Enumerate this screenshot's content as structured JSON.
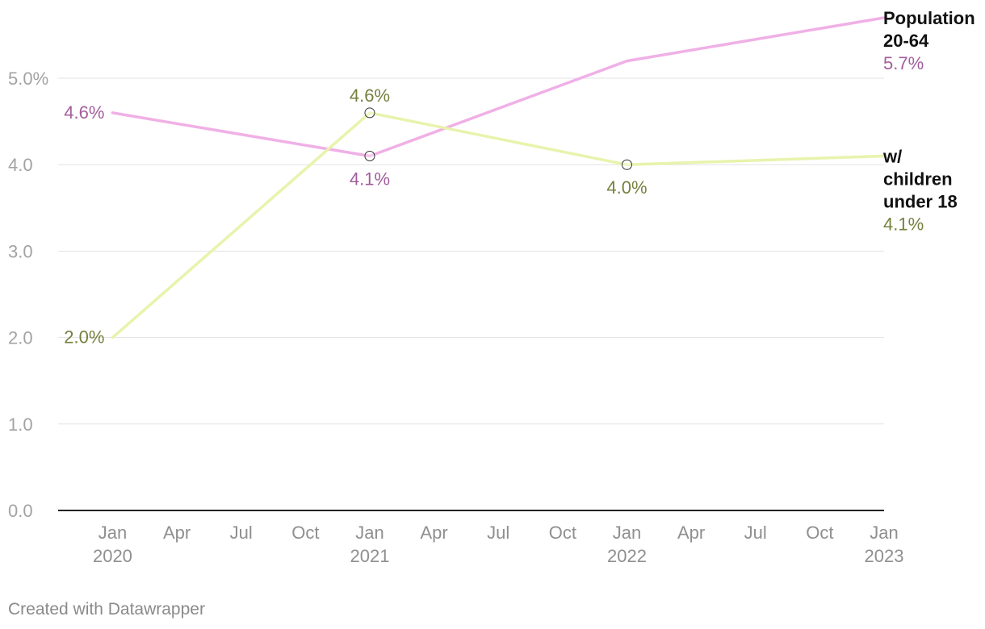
{
  "chart_data": {
    "type": "line",
    "x": [
      "2020-01",
      "2021-01",
      "2022-01",
      "2023-01"
    ],
    "xlim": [
      "2019-10-15",
      "2023-01"
    ],
    "ylim": [
      0,
      5.7
    ],
    "y_ticks": [
      {
        "value": 0,
        "label": "0.0"
      },
      {
        "value": 1,
        "label": "1.0"
      },
      {
        "value": 2,
        "label": "2.0"
      },
      {
        "value": 3,
        "label": "3.0"
      },
      {
        "value": 4,
        "label": "4.0"
      },
      {
        "value": 5,
        "label": "5.0%"
      }
    ],
    "x_ticks": [
      {
        "date": "2020-01",
        "label": "Jan",
        "year": "2020"
      },
      {
        "date": "2020-04",
        "label": "Apr",
        "year": ""
      },
      {
        "date": "2020-07",
        "label": "Jul",
        "year": ""
      },
      {
        "date": "2020-10",
        "label": "Oct",
        "year": ""
      },
      {
        "date": "2021-01",
        "label": "Jan",
        "year": "2021"
      },
      {
        "date": "2021-04",
        "label": "Apr",
        "year": ""
      },
      {
        "date": "2021-07",
        "label": "Jul",
        "year": ""
      },
      {
        "date": "2021-10",
        "label": "Oct",
        "year": ""
      },
      {
        "date": "2022-01",
        "label": "Jan",
        "year": "2022"
      },
      {
        "date": "2022-04",
        "label": "Apr",
        "year": ""
      },
      {
        "date": "2022-07",
        "label": "Jul",
        "year": ""
      },
      {
        "date": "2022-10",
        "label": "Oct",
        "year": ""
      },
      {
        "date": "2023-01",
        "label": "Jan",
        "year": "2023"
      }
    ],
    "grid": true,
    "series": [
      {
        "name": "Population 20-64",
        "name_lines": [
          "Population",
          "20-64"
        ],
        "values": [
          4.6,
          4.1,
          5.2,
          5.7
        ],
        "color": "#f0b0e6",
        "label_color": "#a25e9d",
        "end_label": "5.7%",
        "point_labels": [
          "4.6%",
          "4.1%",
          "",
          ""
        ],
        "markers": [
          false,
          true,
          false,
          false
        ]
      },
      {
        "name": "w/ children under 18",
        "name_lines": [
          "w/",
          "children",
          "under 18"
        ],
        "values": [
          2.0,
          4.6,
          4.0,
          4.1
        ],
        "color": "#e8f3ac",
        "label_color": "#76803f",
        "end_label": "4.1%",
        "point_labels": [
          "2.0%",
          "4.6%",
          "4.0%",
          ""
        ],
        "markers": [
          false,
          true,
          true,
          false
        ]
      }
    ]
  },
  "footer": {
    "credit": "Created with Datawrapper"
  }
}
